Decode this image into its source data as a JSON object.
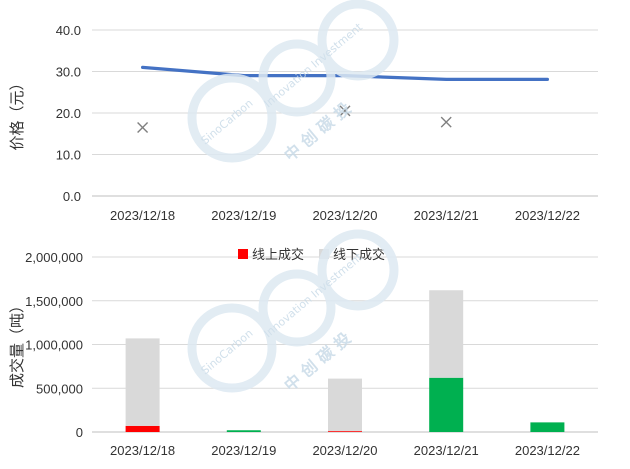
{
  "watermark": {
    "name_en": "SinoCarbon",
    "tagline": "Innovation Investment",
    "name_cn": "中 创 碳 投"
  },
  "chart_data": [
    {
      "type": "line",
      "categories": [
        "2023/12/18",
        "2023/12/19",
        "2023/12/20",
        "2023/12/21",
        "2023/12/22"
      ],
      "ylabel": "价格（元）",
      "ylim": [
        0,
        40
      ],
      "yticks": [
        "0.0",
        "10.0",
        "20.0",
        "30.0",
        "40.0"
      ],
      "grid": true,
      "series": [
        {
          "type": "line",
          "values": [
            31.0,
            29.0,
            29.0,
            28.1,
            28.1
          ],
          "color": "#4472c4"
        },
        {
          "type": "scatter",
          "marker": "x",
          "values": [
            16.5,
            null,
            20.5,
            17.8,
            null
          ],
          "color": "#7f7f7f"
        }
      ]
    },
    {
      "type": "bar",
      "stacked": true,
      "categories": [
        "2023/12/18",
        "2023/12/19",
        "2023/12/20",
        "2023/12/21",
        "2023/12/22"
      ],
      "ylabel": "成交量（吨）",
      "ylim": [
        0,
        2000000
      ],
      "yticks": [
        "0",
        "500,000",
        "1,000,000",
        "1,500,000",
        "2,000,000"
      ],
      "grid": true,
      "legend": "top-center",
      "series": [
        {
          "name": "线上成交",
          "values": [
            70000,
            20000,
            10000,
            620000,
            110000
          ],
          "colors": [
            "#ff0000",
            "#00b050",
            "#ff0000",
            "#00b050",
            "#00b050"
          ],
          "legend_color": "#ff0000"
        },
        {
          "name": "线下成交",
          "values": [
            1000000,
            0,
            600000,
            1000000,
            0
          ],
          "color": "#d9d9d9"
        }
      ]
    }
  ]
}
